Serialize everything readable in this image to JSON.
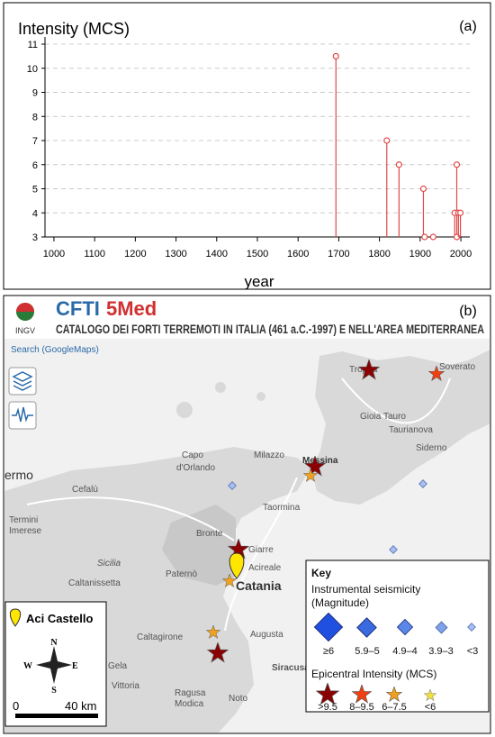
{
  "chart_data": {
    "type": "stem",
    "y_label": "Intensity (MCS)",
    "x_label": "year",
    "panel_label": "(a)",
    "x": [
      1693,
      1818,
      1848,
      1908,
      1911,
      1932,
      1985,
      1990,
      1990,
      1994,
      1999
    ],
    "values": [
      10.5,
      7,
      6,
      5,
      3,
      3,
      4,
      6,
      3,
      4,
      4
    ],
    "color": "#e04848",
    "xlim": [
      978,
      2022
    ],
    "xticks": [
      1000,
      1100,
      1200,
      1300,
      1400,
      1500,
      1600,
      1700,
      1800,
      1900,
      2000
    ],
    "ylim": [
      3,
      11.3
    ],
    "yticks": [
      3,
      4,
      5,
      6,
      7,
      8,
      9,
      10,
      11
    ],
    "grid": true
  },
  "map": {
    "panel_label": "(b)",
    "logo": "INGV",
    "brand": "CFTI",
    "brand_suffix": "5Med",
    "subtitle": "CATALOGO DEI FORTI TERREMOTI IN ITALIA (461 a.C.-1997) E NELL'AREA MEDITERRANEA",
    "search": "Search (GoogleMaps)",
    "places": [
      "Tropea",
      "Soverato",
      "Gioia Tauro",
      "Taurianova",
      "Siderno",
      "Milazzo",
      "Capo",
      "d'Orlando",
      "Messina",
      "ermo",
      "Cefalù",
      "Termini",
      "Imerese",
      "Taormina",
      "Bronte",
      "Giarre",
      "Acireale",
      "Catania",
      "Paternò",
      "Sicilia",
      "Caltanissetta",
      "Caltagirone",
      "Augusta",
      "Gela",
      "Vittoria",
      "Ragusa",
      "Modica",
      "Noto",
      "Siracusa"
    ],
    "site": "Aci Castello",
    "compass": [
      "N",
      "S",
      "W",
      "E"
    ],
    "scale": [
      "0",
      "40 km"
    ],
    "key": {
      "title": "Key",
      "seismicity": "Instrumental seismicity",
      "seismicity_unit": "(Magnitude)",
      "magnitudes": [
        "≥6",
        "5.9–5",
        "4.9–4",
        "3.9–3",
        "<3"
      ],
      "intensity": "Epicentral Intensity (MCS)",
      "intensities": [
        ">9.5",
        "8–9.5",
        "6–7.5",
        "<6"
      ]
    }
  }
}
